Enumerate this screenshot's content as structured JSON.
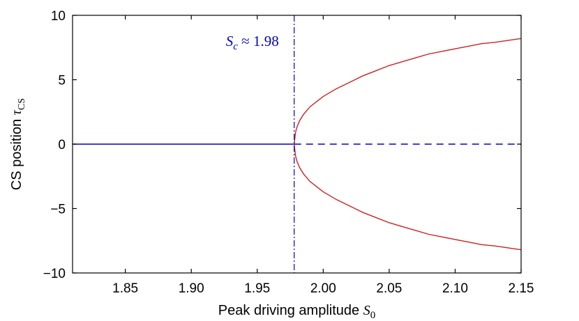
{
  "chart_data": {
    "type": "line",
    "title": "",
    "xlabel": "Peak driving amplitude S0",
    "xlabel_text": "Peak driving amplitude ",
    "xlabel_math": "S",
    "xlabel_sub": "0",
    "ylabel": "CS position τCS",
    "ylabel_text": "CS position ",
    "ylabel_math": "τ",
    "ylabel_sub": "CS",
    "xlim": [
      1.81,
      2.15
    ],
    "ylim": [
      -10,
      10
    ],
    "xticks": [
      1.85,
      1.9,
      1.95,
      2.0,
      2.05,
      2.1,
      2.15
    ],
    "xtick_labels": [
      "1.85",
      "1.90",
      "1.95",
      "2.00",
      "2.05",
      "2.10",
      "2.15"
    ],
    "yticks": [
      -10,
      -5,
      0,
      5,
      10
    ],
    "ytick_labels": [
      "−10",
      "−5",
      "0",
      "5",
      "10"
    ],
    "grid": false,
    "critical_value": 1.978,
    "annotation": {
      "math": "S",
      "sub": "c",
      "text": " ≈ 1.98",
      "color": "#0000cc"
    },
    "series": [
      {
        "style": "solid",
        "color": "#0000cc",
        "x": [
          1.81,
          1.978
        ],
        "y": [
          0,
          0
        ]
      },
      {
        "style": "dashed",
        "color": "#0000cc",
        "x": [
          1.978,
          2.15
        ],
        "y": [
          0,
          0
        ]
      },
      {
        "style": "solid",
        "color": "#cc2222",
        "x": [
          1.978,
          1.979,
          1.98,
          1.982,
          1.985,
          1.99,
          1.995,
          2.0,
          2.01,
          2.02,
          2.03,
          2.04,
          2.05,
          2.06,
          2.07,
          2.08,
          2.09,
          2.1,
          2.11,
          2.12,
          2.13,
          2.14,
          2.15
        ],
        "y": [
          0,
          0.9,
          1.3,
          1.8,
          2.3,
          2.9,
          3.3,
          3.7,
          4.3,
          4.8,
          5.3,
          5.7,
          6.1,
          6.4,
          6.7,
          7.0,
          7.2,
          7.4,
          7.6,
          7.8,
          7.9,
          8.05,
          8.2
        ]
      },
      {
        "style": "solid",
        "color": "#cc2222",
        "x": [
          1.978,
          1.979,
          1.98,
          1.982,
          1.985,
          1.99,
          1.995,
          2.0,
          2.01,
          2.02,
          2.03,
          2.04,
          2.05,
          2.06,
          2.07,
          2.08,
          2.09,
          2.1,
          2.11,
          2.12,
          2.13,
          2.14,
          2.15
        ],
        "y": [
          0,
          -0.9,
          -1.3,
          -1.8,
          -2.3,
          -2.9,
          -3.3,
          -3.7,
          -4.3,
          -4.8,
          -5.3,
          -5.7,
          -6.1,
          -6.4,
          -6.7,
          -7.0,
          -7.2,
          -7.4,
          -7.6,
          -7.8,
          -7.9,
          -8.05,
          -8.2
        ]
      }
    ]
  }
}
